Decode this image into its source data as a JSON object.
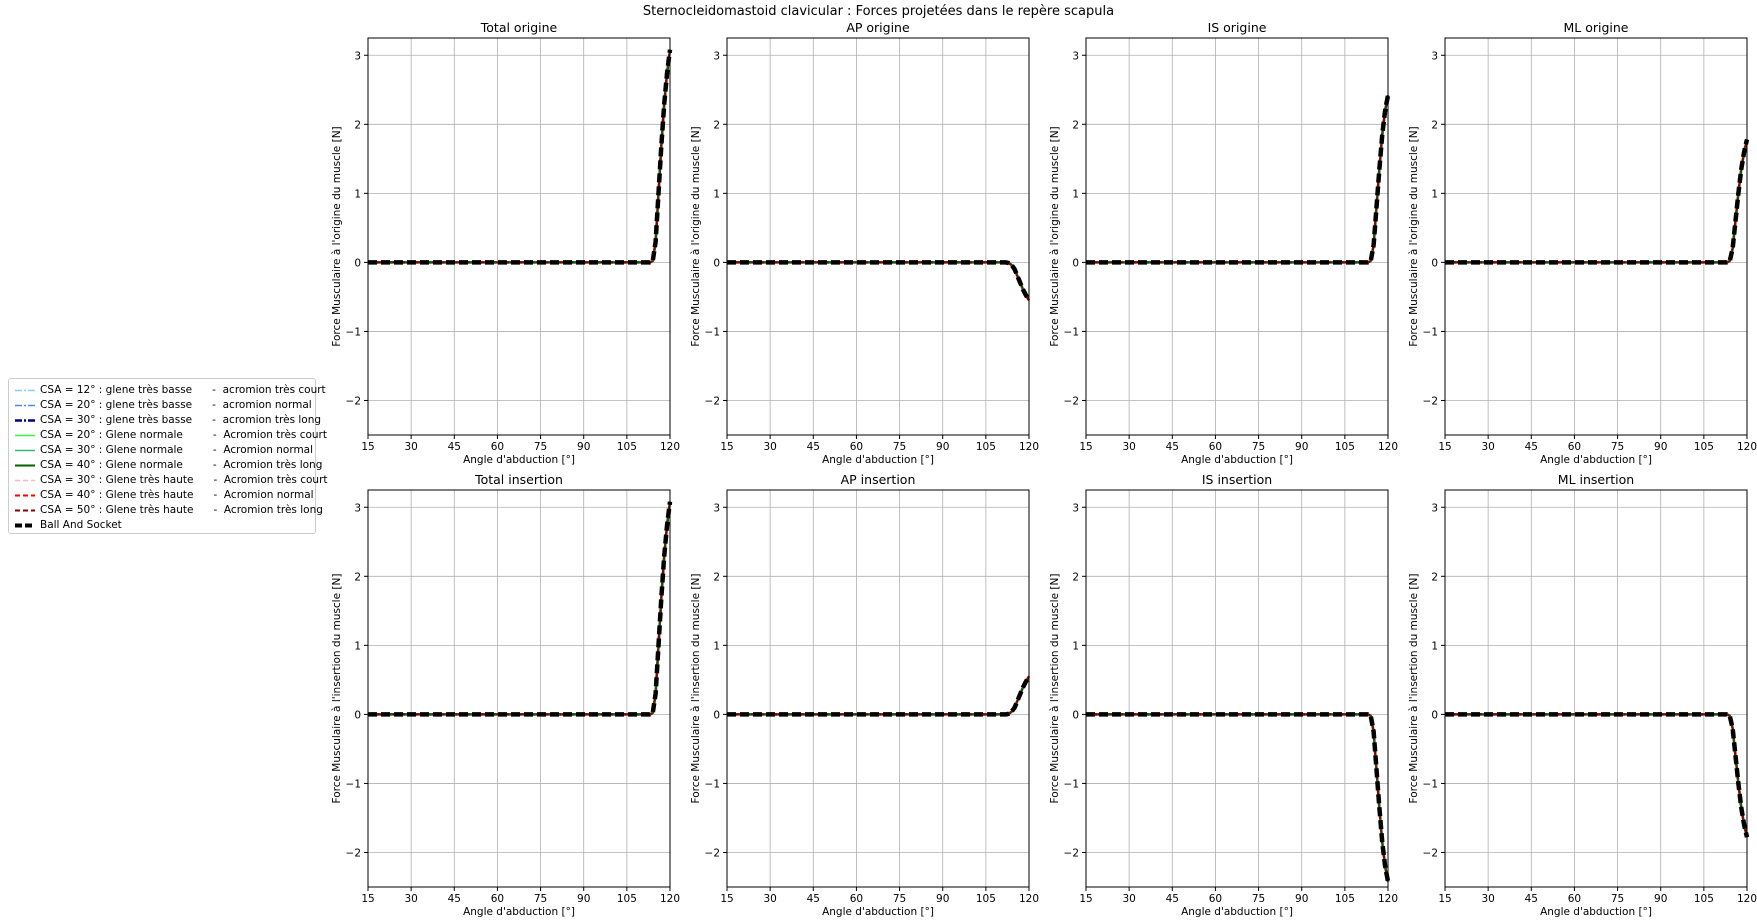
{
  "suptitle": "Sternocleidomastoid clavicular : Forces projetées dans le repère scapula",
  "legend": {
    "entries": [
      {
        "label": "CSA = 12° : glene très basse      -  acromion très court",
        "color": "#87cefa",
        "dash": "7,2,2,2",
        "width": 1.5
      },
      {
        "label": "CSA = 20° : glene très basse      -  acromion normal",
        "color": "#4a90d9",
        "dash": "7,2,2,2",
        "width": 1.5
      },
      {
        "label": "CSA = 30° : glene très basse      -  acromion très long",
        "color": "#000080",
        "dash": "7,2,2,2",
        "width": 2.5
      },
      {
        "label": "CSA = 20° : Glene normale         -  Acromion très court",
        "color": "#32ff32",
        "dash": "",
        "width": 1.5
      },
      {
        "label": "CSA = 30° : Glene normale         -  Acromion normal",
        "color": "#3cb371",
        "dash": "",
        "width": 1.5
      },
      {
        "label": "CSA = 40° : Glene normale         -  Acromion très long",
        "color": "#006400",
        "dash": "",
        "width": 2
      },
      {
        "label": "CSA = 30° : Glene très haute      -  Acromion très court",
        "color": "#ffb6c1",
        "dash": "5,3",
        "width": 1.5
      },
      {
        "label": "CSA = 40° : Glene très haute      -  Acromion normal",
        "color": "#ff0000",
        "dash": "5,3",
        "width": 2
      },
      {
        "label": "CSA = 50° : Glene très haute      -  Acromion très long",
        "color": "#8b0000",
        "dash": "5,3",
        "width": 2
      },
      {
        "label": "Ball And Socket",
        "color": "#000000",
        "dash": "7,3",
        "width": 4
      }
    ]
  },
  "chart_data": [
    {
      "type": "line",
      "title": "Total origine",
      "xlabel": "Angle d'abduction [°]",
      "ylabel": "Force Musculaire à l'origine du muscle [N]",
      "xlim": [
        15,
        120
      ],
      "ylim": [
        -2.5,
        3.25
      ],
      "xticks": [
        15,
        30,
        45,
        60,
        75,
        90,
        105,
        120
      ],
      "yticks": [
        -2,
        -1,
        0,
        1,
        2,
        3
      ],
      "grid": true,
      "x": [
        15,
        30,
        45,
        60,
        75,
        90,
        105,
        110,
        113,
        114,
        115,
        116,
        117,
        118,
        119,
        120
      ],
      "y": [
        0,
        0,
        0,
        0,
        0,
        0,
        0,
        0,
        0,
        0.02,
        0.3,
        1.0,
        1.7,
        2.3,
        2.75,
        3.08
      ]
    },
    {
      "type": "line",
      "title": "AP origine",
      "xlabel": "Angle d'abduction [°]",
      "ylabel": "Force Musculaire à l'origine du muscle [N]",
      "xlim": [
        15,
        120
      ],
      "ylim": [
        -2.5,
        3.25
      ],
      "xticks": [
        15,
        30,
        45,
        60,
        75,
        90,
        105,
        120
      ],
      "yticks": [
        -2,
        -1,
        0,
        1,
        2,
        3
      ],
      "grid": true,
      "x": [
        15,
        30,
        45,
        60,
        75,
        90,
        105,
        110,
        112,
        113,
        114,
        115,
        116,
        117,
        118,
        119,
        120
      ],
      "y": [
        0,
        0,
        0,
        0,
        0,
        0,
        0,
        0,
        0,
        -0.01,
        -0.04,
        -0.1,
        -0.2,
        -0.3,
        -0.4,
        -0.48,
        -0.55
      ]
    },
    {
      "type": "line",
      "title": "IS origine",
      "xlabel": "Angle d'abduction [°]",
      "ylabel": "Force Musculaire à l'origine du muscle [N]",
      "xlim": [
        15,
        120
      ],
      "ylim": [
        -2.5,
        3.25
      ],
      "xticks": [
        15,
        30,
        45,
        60,
        75,
        90,
        105,
        120
      ],
      "yticks": [
        -2,
        -1,
        0,
        1,
        2,
        3
      ],
      "grid": true,
      "x": [
        15,
        30,
        45,
        60,
        75,
        90,
        105,
        110,
        113,
        114,
        115,
        116,
        117,
        118,
        119,
        120
      ],
      "y": [
        0,
        0,
        0,
        0,
        0,
        0,
        0,
        0,
        0,
        0.02,
        0.25,
        0.8,
        1.35,
        1.85,
        2.2,
        2.42
      ]
    },
    {
      "type": "line",
      "title": "ML origine",
      "xlabel": "Angle d'abduction [°]",
      "ylabel": "Force Musculaire à l'origine du muscle [N]",
      "xlim": [
        15,
        120
      ],
      "ylim": [
        -2.5,
        3.25
      ],
      "xticks": [
        15,
        30,
        45,
        60,
        75,
        90,
        105,
        120
      ],
      "yticks": [
        -2,
        -1,
        0,
        1,
        2,
        3
      ],
      "grid": true,
      "x": [
        15,
        30,
        45,
        60,
        75,
        90,
        105,
        110,
        113,
        114,
        115,
        116,
        117,
        118,
        119,
        120
      ],
      "y": [
        0,
        0,
        0,
        0,
        0,
        0,
        0,
        0,
        0,
        0.02,
        0.2,
        0.6,
        1.0,
        1.35,
        1.6,
        1.78
      ]
    },
    {
      "type": "line",
      "title": "Total insertion",
      "xlabel": "Angle d'abduction [°]",
      "ylabel": "Force Musculaire à l'insertion du muscle [N]",
      "xlim": [
        15,
        120
      ],
      "ylim": [
        -2.5,
        3.25
      ],
      "xticks": [
        15,
        30,
        45,
        60,
        75,
        90,
        105,
        120
      ],
      "yticks": [
        -2,
        -1,
        0,
        1,
        2,
        3
      ],
      "grid": true,
      "x": [
        15,
        30,
        45,
        60,
        75,
        90,
        105,
        110,
        113,
        114,
        115,
        116,
        117,
        118,
        119,
        120
      ],
      "y": [
        0,
        0,
        0,
        0,
        0,
        0,
        0,
        0,
        0,
        0.02,
        0.3,
        1.0,
        1.7,
        2.3,
        2.75,
        3.08
      ]
    },
    {
      "type": "line",
      "title": "AP insertion",
      "xlabel": "Angle d'abduction [°]",
      "ylabel": "Force Musculaire à l'insertion du muscle [N]",
      "xlim": [
        15,
        120
      ],
      "ylim": [
        -2.5,
        3.25
      ],
      "xticks": [
        15,
        30,
        45,
        60,
        75,
        90,
        105,
        120
      ],
      "yticks": [
        -2,
        -1,
        0,
        1,
        2,
        3
      ],
      "grid": true,
      "x": [
        15,
        30,
        45,
        60,
        75,
        90,
        105,
        110,
        112,
        113,
        114,
        115,
        116,
        117,
        118,
        119,
        120
      ],
      "y": [
        0,
        0,
        0,
        0,
        0,
        0,
        0,
        0,
        0,
        0.01,
        0.04,
        0.1,
        0.2,
        0.3,
        0.4,
        0.48,
        0.55
      ]
    },
    {
      "type": "line",
      "title": "IS insertion",
      "xlabel": "Angle d'abduction [°]",
      "ylabel": "Force Musculaire à l'insertion du muscle [N]",
      "xlim": [
        15,
        120
      ],
      "ylim": [
        -2.5,
        3.25
      ],
      "xticks": [
        15,
        30,
        45,
        60,
        75,
        90,
        105,
        120
      ],
      "yticks": [
        -2,
        -1,
        0,
        1,
        2,
        3
      ],
      "grid": true,
      "x": [
        15,
        30,
        45,
        60,
        75,
        90,
        105,
        110,
        113,
        114,
        115,
        116,
        117,
        118,
        119,
        120
      ],
      "y": [
        0,
        0,
        0,
        0,
        0,
        0,
        0,
        0,
        0,
        -0.02,
        -0.25,
        -0.8,
        -1.35,
        -1.85,
        -2.2,
        -2.42
      ]
    },
    {
      "type": "line",
      "title": "ML insertion",
      "xlabel": "Angle d'abduction [°]",
      "ylabel": "Force Musculaire à l'insertion du muscle [N]",
      "xlim": [
        15,
        120
      ],
      "ylim": [
        -2.5,
        3.25
      ],
      "xticks": [
        15,
        30,
        45,
        60,
        75,
        90,
        105,
        120
      ],
      "yticks": [
        -2,
        -1,
        0,
        1,
        2,
        3
      ],
      "grid": true,
      "x": [
        15,
        30,
        45,
        60,
        75,
        90,
        105,
        110,
        113,
        114,
        115,
        116,
        117,
        118,
        119,
        120
      ],
      "y": [
        0,
        0,
        0,
        0,
        0,
        0,
        0,
        0,
        0,
        -0.02,
        -0.2,
        -0.6,
        -1.0,
        -1.35,
        -1.6,
        -1.78
      ]
    }
  ]
}
